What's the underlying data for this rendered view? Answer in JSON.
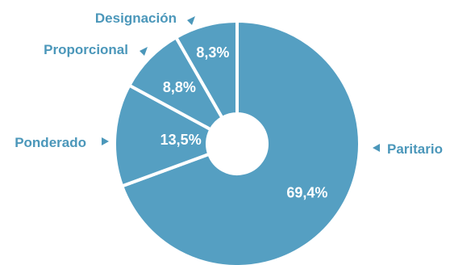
{
  "chart_data": {
    "type": "pie",
    "donut": true,
    "categories": [
      "Paritario",
      "Ponderado",
      "Proporcional",
      "Designación"
    ],
    "values": [
      69.4,
      13.5,
      8.8,
      8.3
    ],
    "value_labels": [
      "69,4%",
      "13,5%",
      "8,8%",
      "8,3%"
    ],
    "title": "",
    "legend": "none",
    "colors": {
      "slice": "#559fc2",
      "separator": "#ffffff",
      "label": "#4b97ba",
      "value_text": "#ffffff"
    }
  }
}
